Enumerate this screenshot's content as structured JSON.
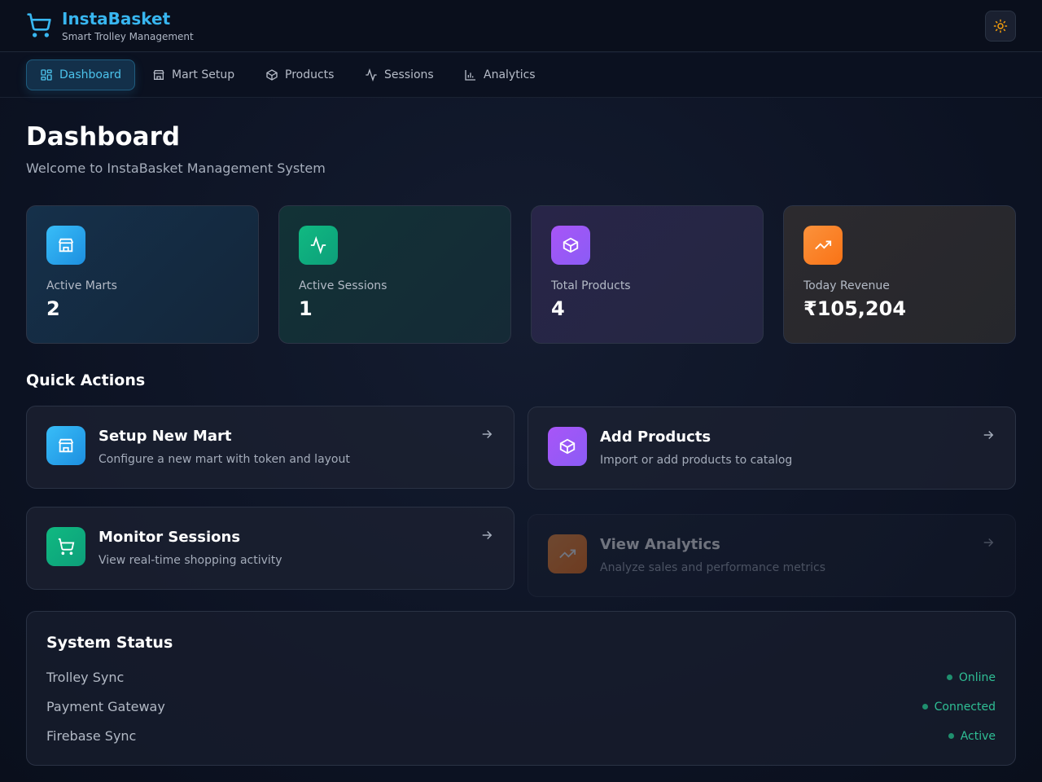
{
  "header": {
    "brand": "InstaBasket",
    "tagline": "Smart Trolley Management"
  },
  "nav": [
    "Dashboard",
    "Mart Setup",
    "Products",
    "Sessions",
    "Analytics"
  ],
  "page": {
    "title": "Dashboard",
    "subtitle": "Welcome to InstaBasket Management System"
  },
  "stats": [
    {
      "label": "Active Marts",
      "value": "2"
    },
    {
      "label": "Active Sessions",
      "value": "1"
    },
    {
      "label": "Total Products",
      "value": "4"
    },
    {
      "label": "Today Revenue",
      "value": "₹105,204"
    }
  ],
  "quick_actions": {
    "title": "Quick Actions",
    "items": [
      {
        "title": "Setup New Mart",
        "description": "Configure a new mart with token and layout"
      },
      {
        "title": "Add Products",
        "description": "Import or add products to catalog"
      },
      {
        "title": "Monitor Sessions",
        "description": "View real-time shopping activity"
      },
      {
        "title": "View Analytics",
        "description": "Analyze sales and performance metrics"
      }
    ]
  },
  "system_status": {
    "title": "System Status",
    "rows": [
      {
        "name": "Trolley Sync",
        "status": "Online"
      },
      {
        "name": "Payment Gateway",
        "status": "Connected"
      },
      {
        "name": "Firebase Sync",
        "status": "Active"
      }
    ]
  }
}
